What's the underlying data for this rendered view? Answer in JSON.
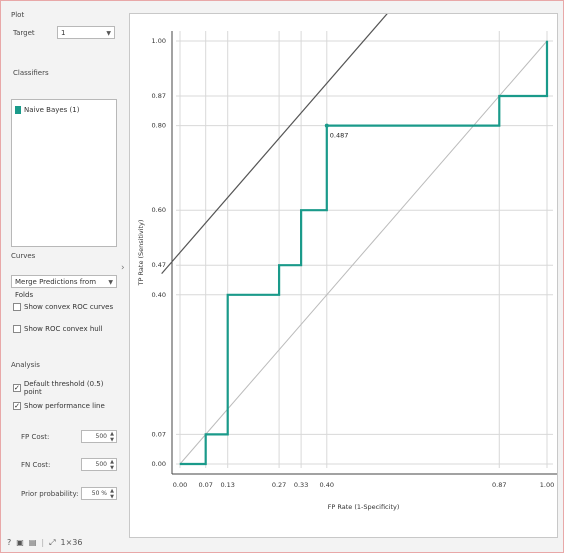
{
  "plot_section": {
    "title": "Plot",
    "target_label": "Target",
    "target_value": "1",
    "classifier_label": "Classifiers",
    "classifiers": [
      {
        "name": "Naive Bayes (1)",
        "color": "#1a9a8a"
      }
    ]
  },
  "curves_section": {
    "title": "Curves",
    "merge_value": "Merge Predictions from Folds",
    "show_convex_curves": "Show convex ROC curves",
    "show_convex_hull": "Show ROC convex hull"
  },
  "analysis_section": {
    "title": "Analysis",
    "default_threshold": "Default threshold (0.5) point",
    "show_perf_line": "Show performance line",
    "fp_cost_label": "FP Cost:",
    "fp_cost_value": "500",
    "fn_cost_label": "FN Cost:",
    "fn_cost_value": "500",
    "prior_prob_label": "Prior probability:",
    "prior_prob_value": "50 %"
  },
  "bottom_bar": {
    "icons": [
      "help-icon",
      "save-icon",
      "report-icon",
      "resize-icon"
    ],
    "size_label": "1×36"
  },
  "chart_data": {
    "type": "line",
    "xlabel": "FP Rate (1-Specificity)",
    "ylabel": "TP Rate (Sensitivity)",
    "xlim": [
      0,
      1
    ],
    "ylim": [
      0,
      1
    ],
    "x_ticks": [
      0.0,
      0.07,
      0.13,
      0.27,
      0.33,
      0.4,
      0.87,
      1.0
    ],
    "x_tick_labels": [
      "0.00",
      "0.07",
      "0.13",
      "0.27",
      "0.33",
      "0.40",
      "0.87",
      "1.00"
    ],
    "y_ticks": [
      0.0,
      0.07,
      0.4,
      0.47,
      0.6,
      0.8,
      0.87,
      1.0
    ],
    "y_tick_labels": [
      "0.00",
      "0.07",
      "0.40",
      "0.47",
      "0.60",
      "0.80",
      "0.87",
      "1.00"
    ],
    "series": [
      {
        "color": "#1a9a8a",
        "x": [
          0.0,
          0.07,
          0.07,
          0.13,
          0.13,
          0.27,
          0.27,
          0.33,
          0.33,
          0.4,
          0.4,
          0.87,
          0.87,
          1.0,
          1.0
        ],
        "y": [
          0.0,
          0.0,
          0.07,
          0.07,
          0.4,
          0.4,
          0.47,
          0.47,
          0.6,
          0.6,
          0.8,
          0.8,
          0.87,
          0.87,
          1.0
        ]
      }
    ],
    "diagonal": {
      "from": [
        0,
        0
      ],
      "to": [
        1,
        1
      ],
      "color": "#bbbbbb"
    },
    "performance_line": {
      "from": [
        -0.05,
        0.45
      ],
      "to": [
        0.65,
        1.15
      ],
      "color": "#555555"
    },
    "threshold_point": {
      "x": 0.4,
      "y": 0.8,
      "label": "0.487"
    },
    "grid": true
  }
}
